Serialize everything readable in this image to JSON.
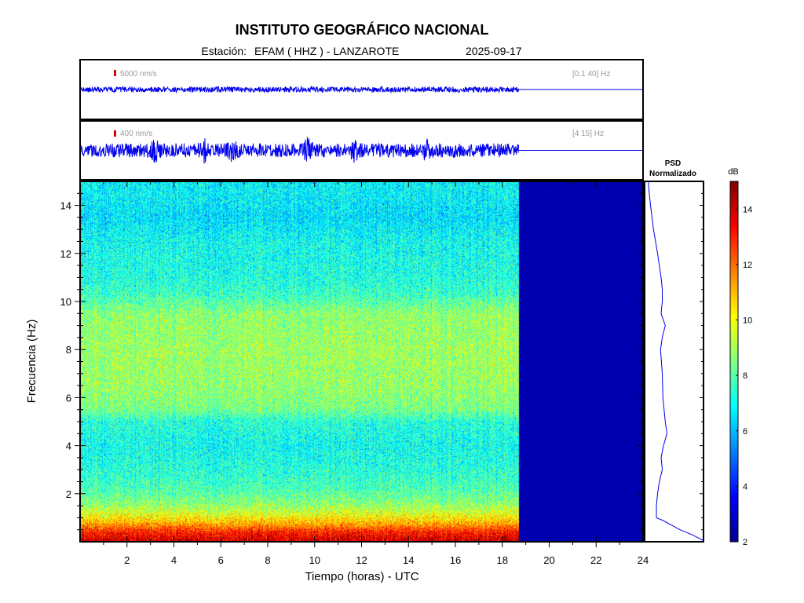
{
  "header": {
    "title": "INSTITUTO GEOGRÁFICO NACIONAL",
    "station_prefix": "Estación:",
    "station": "EFAM ( HHZ ) - LANZAROTE",
    "date": "2025-09-17"
  },
  "colors": {
    "trace": "#0000ee",
    "scale_bar": "#dd0000",
    "no_data": "#000080",
    "frame": "#000000",
    "colormap": [
      "#00008f",
      "#0000ff",
      "#0080ff",
      "#00ffff",
      "#80ff80",
      "#ffff00",
      "#ff8000",
      "#ff0000",
      "#800000"
    ]
  },
  "chart_data": [
    {
      "type": "line",
      "panel": "waveform-broadband",
      "scale_label": "5000 nm/s",
      "filter_label": "[0.1 40] Hz",
      "data_end_hour": 18.7,
      "xlim": [
        0,
        24
      ]
    },
    {
      "type": "line",
      "panel": "waveform-filtered",
      "scale_label": "400 nm/s",
      "filter_label": "[4 15] Hz",
      "data_end_hour": 18.7,
      "xlim": [
        0,
        24
      ],
      "burst_hours": [
        3.2,
        5.3,
        6.5,
        9.7,
        11.7,
        14.8
      ]
    },
    {
      "type": "heatmap",
      "panel": "spectrogram",
      "xlabel": "Tiempo (horas) - UTC",
      "ylabel": "Frecuencia  (Hz)",
      "xlim": [
        0,
        24
      ],
      "ylim": [
        0,
        15
      ],
      "xticks": [
        2,
        4,
        6,
        8,
        10,
        12,
        14,
        16,
        18,
        20,
        22,
        24
      ],
      "yticks": [
        2,
        4,
        6,
        8,
        10,
        12,
        14
      ],
      "data_end_hour": 18.7,
      "no_data_value_db": 2.5,
      "level_profile_db": [
        [
          0.1,
          13.8
        ],
        [
          0.4,
          13.0
        ],
        [
          0.8,
          11.0
        ],
        [
          1.2,
          9.6
        ],
        [
          1.6,
          8.6
        ],
        [
          2.2,
          7.8
        ],
        [
          3.0,
          7.3
        ],
        [
          4.0,
          7.0
        ],
        [
          5.0,
          7.3
        ],
        [
          5.5,
          8.4
        ],
        [
          6.5,
          8.8
        ],
        [
          8.0,
          8.9
        ],
        [
          9.5,
          8.7
        ],
        [
          10.3,
          7.6
        ],
        [
          11.0,
          7.2
        ],
        [
          12.5,
          7.0
        ],
        [
          13.5,
          6.5
        ],
        [
          14.5,
          6.8
        ],
        [
          15.0,
          6.8
        ]
      ]
    },
    {
      "type": "line",
      "panel": "psd",
      "title_line1": "PSD",
      "title_line2": "Normalizado",
      "x": [
        0.06,
        0.1,
        0.15,
        0.22,
        0.28,
        0.3,
        0.3,
        0.28,
        0.35,
        0.3,
        0.27,
        0.3,
        0.31,
        0.35,
        0.38,
        0.32,
        0.28,
        0.3,
        0.25,
        0.22,
        0.2,
        0.2
      ],
      "y": [
        15.0,
        14.0,
        13.0,
        12.0,
        11.0,
        10.5,
        10.0,
        9.5,
        9.0,
        8.5,
        8.0,
        7.0,
        6.0,
        5.0,
        4.5,
        4.0,
        3.5,
        3.0,
        2.5,
        2.0,
        1.5,
        1.0
      ],
      "tail_x": [
        0.3,
        0.45,
        0.6,
        0.8,
        0.92,
        1.0
      ],
      "tail_y": [
        0.9,
        0.7,
        0.5,
        0.3,
        0.15,
        0.05
      ],
      "xlim": [
        0,
        1
      ],
      "ylim": [
        0,
        15
      ]
    },
    {
      "type": "heatmap",
      "panel": "colorbar",
      "unit": "dB",
      "ylim": [
        2,
        15
      ],
      "ticks": [
        2,
        4,
        6,
        8,
        10,
        12,
        14
      ]
    }
  ]
}
